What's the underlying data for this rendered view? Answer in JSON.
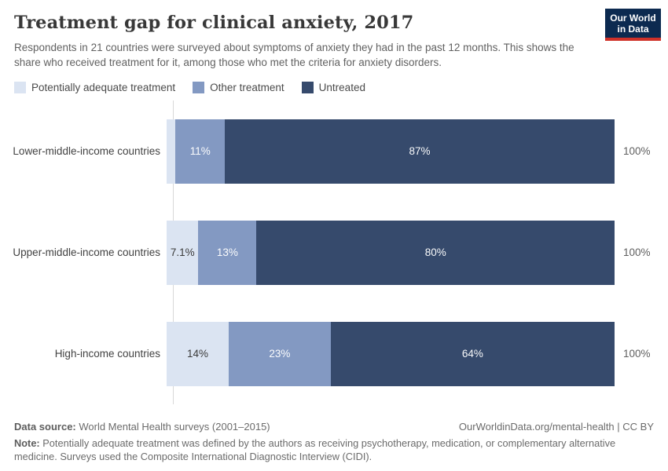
{
  "logo": {
    "line1": "Our World",
    "line2": "in Data",
    "bg_color": "#0c2a50",
    "accent_color": "#cf3129"
  },
  "header": {
    "title": "Treatment gap for clinical anxiety, 2017",
    "subtitle": "Respondents in 21 countries were surveyed about symptoms of anxiety they had in the past 12 months. This shows the share who received treatment for it, among those who met the criteria for anxiety disorders."
  },
  "legend": [
    {
      "label": "Potentially adequate treatment",
      "color": "#dbe4f2"
    },
    {
      "label": "Other treatment",
      "color": "#8399c2"
    },
    {
      "label": "Untreated",
      "color": "#364a6c"
    }
  ],
  "chart_data": {
    "type": "bar",
    "orientation": "horizontal",
    "stacked": true,
    "title": "Treatment gap for clinical anxiety, 2017",
    "xlim": [
      0,
      100
    ],
    "grid": false,
    "categories": [
      "Lower-middle-income countries",
      "Upper-middle-income countries",
      "High-income countries"
    ],
    "series": [
      {
        "name": "Potentially adequate treatment",
        "color": "#dbe4f2",
        "text_color": "dark",
        "values": [
          2,
          7.1,
          14
        ],
        "labels": [
          "",
          "7.1%",
          "14%"
        ]
      },
      {
        "name": "Other treatment",
        "color": "#8399c2",
        "text_color": "light",
        "values": [
          11,
          13,
          23
        ],
        "labels": [
          "11%",
          "13%",
          "23%"
        ]
      },
      {
        "name": "Untreated",
        "color": "#364a6c",
        "text_color": "light",
        "values": [
          87,
          80,
          64
        ],
        "labels": [
          "87%",
          "80%",
          "64%"
        ]
      }
    ],
    "totals": [
      "100%",
      "100%",
      "100%"
    ]
  },
  "footer": {
    "source_label": "Data source:",
    "source_text": " World Mental Health surveys (2001–2015)",
    "link": "OurWorldinData.org/mental-health | CC BY",
    "note_label": "Note:",
    "note_text": " Potentially adequate treatment was defined by the authors as receiving psychotherapy, medication, or complementary alternative medicine. Surveys used the Composite International Diagnostic Interview (CIDI)."
  }
}
